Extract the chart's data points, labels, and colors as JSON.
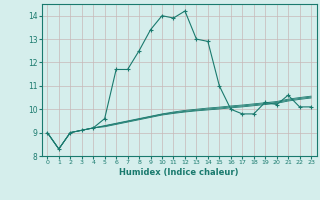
{
  "xlabel": "Humidex (Indice chaleur)",
  "x": [
    0,
    1,
    2,
    3,
    4,
    5,
    6,
    7,
    8,
    9,
    10,
    11,
    12,
    13,
    14,
    15,
    16,
    17,
    18,
    19,
    20,
    21,
    22,
    23
  ],
  "line1": [
    9.0,
    8.3,
    9.0,
    9.1,
    9.2,
    9.6,
    11.7,
    11.7,
    12.5,
    13.4,
    14.0,
    13.9,
    14.2,
    13.0,
    12.9,
    11.0,
    10.0,
    9.8,
    9.8,
    10.3,
    10.2,
    10.6,
    10.1,
    10.1
  ],
  "line2": [
    9.0,
    8.3,
    9.0,
    9.1,
    9.2,
    9.25,
    9.35,
    9.45,
    9.55,
    9.65,
    9.75,
    9.82,
    9.88,
    9.93,
    9.97,
    10.01,
    10.06,
    10.1,
    10.15,
    10.2,
    10.25,
    10.35,
    10.42,
    10.48
  ],
  "line3": [
    9.0,
    8.3,
    9.0,
    9.1,
    9.2,
    9.28,
    9.38,
    9.48,
    9.58,
    9.68,
    9.78,
    9.85,
    9.91,
    9.96,
    10.01,
    10.05,
    10.1,
    10.14,
    10.19,
    10.24,
    10.29,
    10.39,
    10.46,
    10.52
  ],
  "line4": [
    9.0,
    8.3,
    9.0,
    9.1,
    9.2,
    9.3,
    9.4,
    9.5,
    9.6,
    9.7,
    9.8,
    9.88,
    9.95,
    10.0,
    10.05,
    10.09,
    10.14,
    10.18,
    10.23,
    10.28,
    10.33,
    10.43,
    10.5,
    10.56
  ],
  "line_color": "#1a7a6e",
  "bg_color": "#d5eeec",
  "grid_color": "#c8b8b8",
  "ylim": [
    8.0,
    14.5
  ],
  "yticks": [
    8,
    9,
    10,
    11,
    12,
    13,
    14
  ],
  "xlim": [
    -0.5,
    23.5
  ]
}
